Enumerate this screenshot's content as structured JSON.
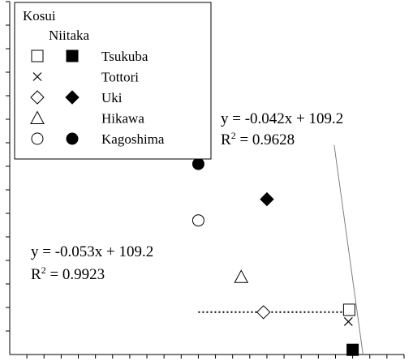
{
  "chart_data": {
    "type": "scatter",
    "title": "",
    "xlabel": "",
    "ylabel": "",
    "grid": false,
    "legend_position": "top-left",
    "legend": {
      "column_headers": [
        "Kosui",
        "Niitaka"
      ],
      "entries": [
        {
          "label": "Tsukuba",
          "kosui_marker": "open-square",
          "niitaka_marker": "filled-square"
        },
        {
          "label": "Tottori",
          "kosui_marker": "cross",
          "niitaka_marker": null
        },
        {
          "label": "Uki",
          "kosui_marker": "open-diamond",
          "niitaka_marker": "filled-diamond"
        },
        {
          "label": "Hikawa",
          "kosui_marker": "open-triangle",
          "niitaka_marker": null
        },
        {
          "label": "Kagoshima",
          "kosui_marker": "open-circle",
          "niitaka_marker": "filled-circle"
        }
      ]
    },
    "series": [
      {
        "name": "Kosui",
        "points": [
          {
            "site": "Tsukuba",
            "marker": "open-square",
            "x": 1980,
            "y": 1.9
          },
          {
            "site": "Tottori",
            "marker": "cross",
            "x": 1975,
            "y": 1.4
          },
          {
            "site": "Uki",
            "marker": "open-diamond",
            "x": 1480,
            "y": 1.8
          },
          {
            "site": "Hikawa",
            "marker": "open-triangle",
            "x": 1350,
            "y": 3.3
          },
          {
            "site": "Kagoshima",
            "marker": "open-circle",
            "x": 1100,
            "y": 5.7
          }
        ],
        "fit": {
          "equation": "y = -0.053x + 109.2",
          "r2_prefix": "R",
          "r2_value": " = 0.9923"
        }
      },
      {
        "name": "Niitaka",
        "points": [
          {
            "site": "Tsukuba",
            "marker": "filled-square",
            "x": 2000,
            "y": 0.2
          },
          {
            "site": "Uki",
            "marker": "filled-diamond",
            "x": 1500,
            "y": 6.6
          },
          {
            "site": "Kagoshima",
            "marker": "filled-circle",
            "x": 1100,
            "y": 8.1
          }
        ],
        "fit": {
          "equation": "y = -0.042x + 109.2",
          "r2_prefix": "R",
          "r2_value": " = 0.9628"
        }
      }
    ],
    "reference_line": {
      "style": "dotted",
      "x": [
        1100,
        1980
      ],
      "y": [
        1.8,
        1.8
      ]
    },
    "xlim": [
      0,
      2300
    ],
    "ylim": [
      0,
      15
    ],
    "x_tick_step": 100,
    "y_tick_step": 1
  }
}
